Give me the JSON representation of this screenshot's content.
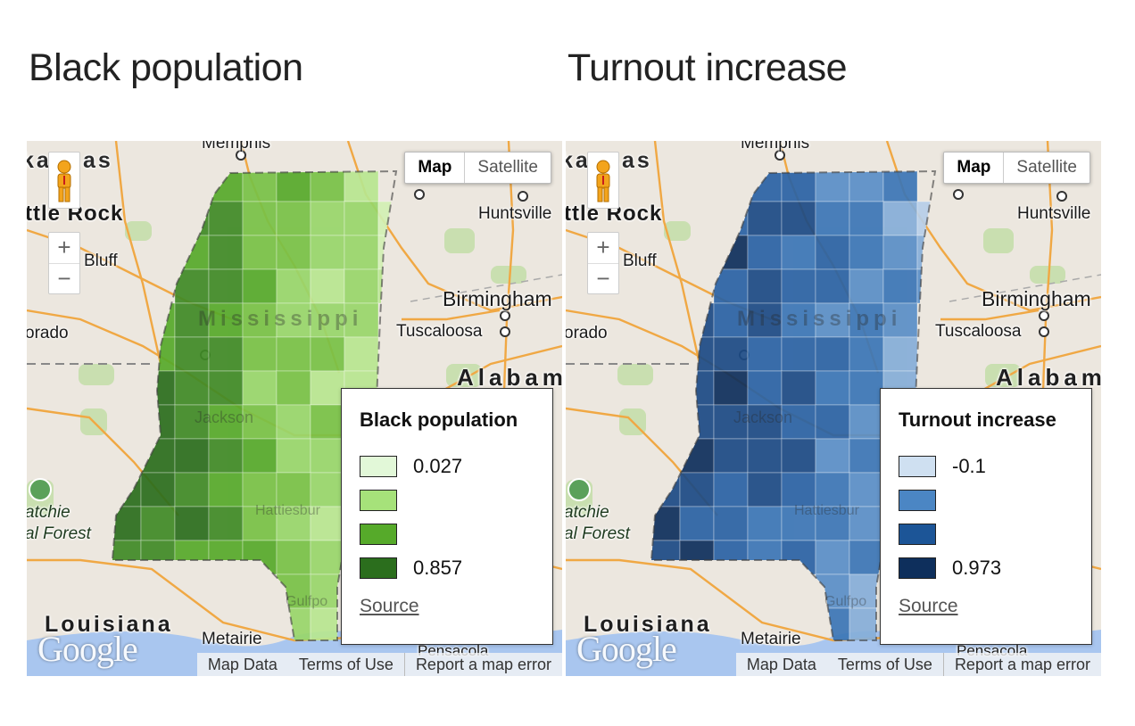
{
  "panels": [
    {
      "title": "Black population",
      "map_type": {
        "map_label": "Map",
        "satellite_label": "Satellite",
        "active": "Map"
      },
      "labels": {
        "memphis": "Memphis",
        "arkansas": "kansas",
        "little_rock": "ttle Rock",
        "huntsville": "Huntsville",
        "bluff": "Bluff",
        "birmingham": "Birmingham",
        "mississippi": "Mississippi",
        "dorado": "orado",
        "tuscaloosa": "Tuscaloosa",
        "alabama": "Alabama",
        "jackson": "Jackson",
        "kisatchie": "atchie",
        "forest": "al Forest",
        "hattiesburg": "Hattiesbur",
        "gulfport": "Gulfpo",
        "louisiana": "Louisiana",
        "metairie": "Metairie",
        "pensacola": "Pensacola"
      },
      "zoom": {
        "in_label": "+",
        "out_label": "−"
      },
      "logo": "Google",
      "footer": {
        "map_data": "Map Data",
        "terms": "Terms of Use",
        "report": "Report a map error"
      },
      "legend": {
        "title": "Black population",
        "items": [
          {
            "color": "#e2f8d8",
            "label": "0.027"
          },
          {
            "color": "#a6e27a",
            "label": ""
          },
          {
            "color": "#56aa2a",
            "label": ""
          },
          {
            "color": "#2b6e1d",
            "label": "0.857"
          }
        ],
        "source_label": "Source"
      }
    },
    {
      "title": "Turnout increase",
      "map_type": {
        "map_label": "Map",
        "satellite_label": "Satellite",
        "active": "Map"
      },
      "labels": {
        "memphis": "Memphis",
        "arkansas": "kansas",
        "little_rock": "ttle Rock",
        "huntsville": "Huntsville",
        "bluff": "Bluff",
        "birmingham": "Birmingham",
        "mississippi": "Mississippi",
        "dorado": "orado",
        "tuscaloosa": "Tuscaloosa",
        "alabama": "Alabama",
        "jackson": "Jackson",
        "kisatchie": "atchie",
        "forest": "al Forest",
        "hattiesburg": "Hattiesbur",
        "gulfport": "Gulfpo",
        "louisiana": "Louisiana",
        "metairie": "Metairie",
        "pensacola": "Pensacola"
      },
      "zoom": {
        "in_label": "+",
        "out_label": "−"
      },
      "logo": "Google",
      "footer": {
        "map_data": "Map Data",
        "terms": "Terms of Use",
        "report": "Report a map error"
      },
      "legend": {
        "title": "Turnout increase",
        "items": [
          {
            "color": "#cfe0f1",
            "label": "-0.1"
          },
          {
            "color": "#4b86c4",
            "label": ""
          },
          {
            "color": "#1c5597",
            "label": ""
          },
          {
            "color": "#0e2f5c",
            "label": "0.973"
          }
        ],
        "source_label": "Source"
      }
    }
  ],
  "palettes": {
    "green": [
      "#2b6e1d",
      "#3f8a25",
      "#56aa2a",
      "#78c246",
      "#98d66a",
      "#b8e690",
      "#d2f0b4"
    ],
    "blue": [
      "#0e2f5c",
      "#1c4a85",
      "#2a62a4",
      "#3b76b6",
      "#5a8fc7",
      "#86aed8",
      "#b7cfe9"
    ]
  }
}
